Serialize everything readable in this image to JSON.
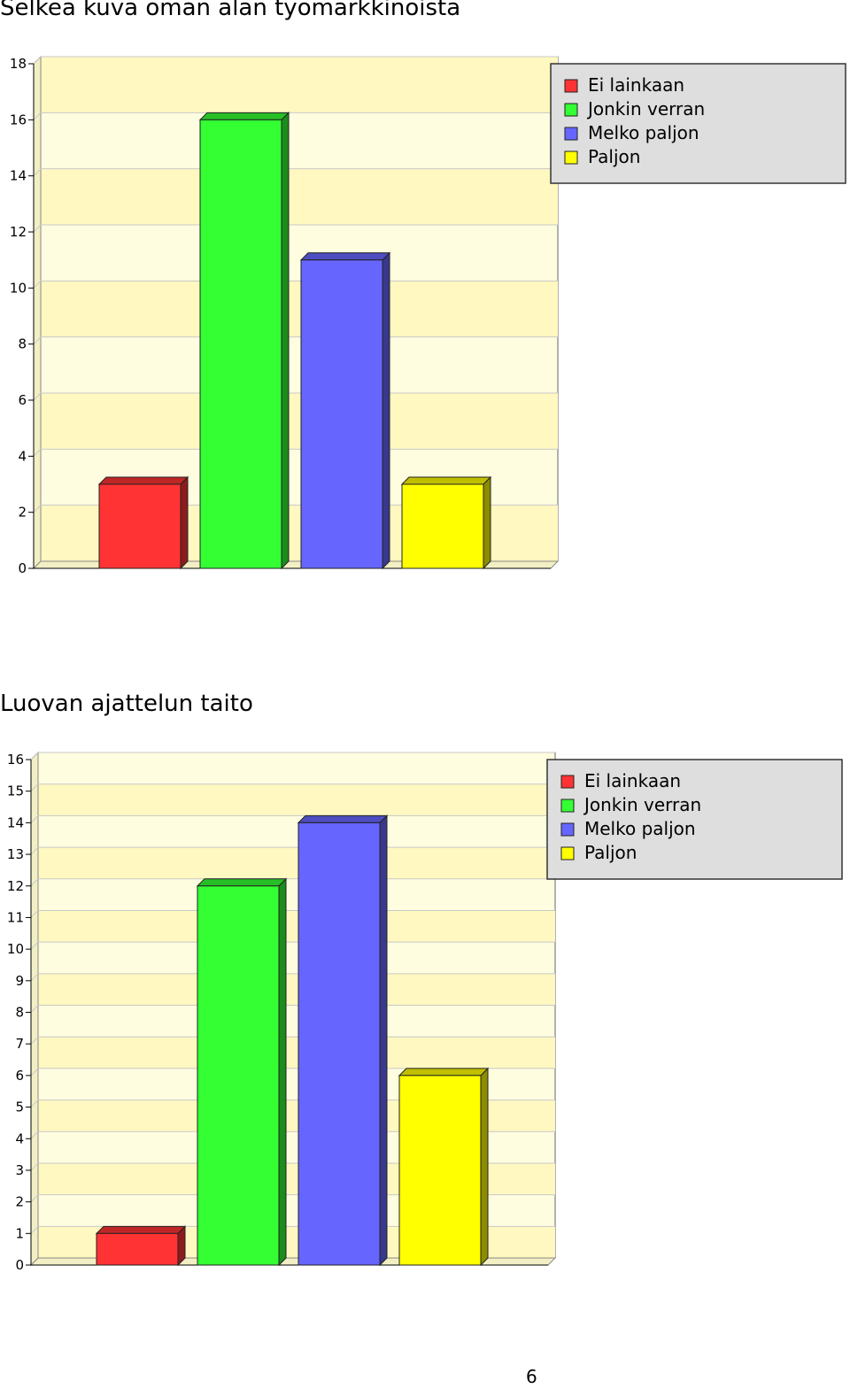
{
  "page_number": "6",
  "chart_data": [
    {
      "type": "bar",
      "title": "Selkeä kuva oman alan työmarkkinoista",
      "categories": [
        "Ei lainkaan",
        "Jonkin verran",
        "Melko paljon",
        "Paljon"
      ],
      "values": [
        3,
        16,
        11,
        3
      ],
      "colors": [
        "#ff3333",
        "#33ff33",
        "#6666ff",
        "#ffff00"
      ],
      "ylim": [
        0,
        18
      ],
      "yticks": [
        0,
        2,
        4,
        6,
        8,
        10,
        12,
        14,
        16,
        18
      ],
      "legend": {
        "position": "top-right",
        "entries": [
          "Ei lainkaan",
          "Jonkin verran",
          "Melko paljon",
          "Paljon"
        ]
      },
      "grid": true,
      "xlabel": "",
      "ylabel": ""
    },
    {
      "type": "bar",
      "title": "Luovan ajattelun taito",
      "categories": [
        "Ei lainkaan",
        "Jonkin verran",
        "Melko paljon",
        "Paljon"
      ],
      "values": [
        1,
        12,
        14,
        6
      ],
      "colors": [
        "#ff3333",
        "#33ff33",
        "#6666ff",
        "#ffff00"
      ],
      "ylim": [
        0,
        16
      ],
      "yticks": [
        0,
        1,
        2,
        3,
        4,
        5,
        6,
        7,
        8,
        9,
        10,
        11,
        12,
        13,
        14,
        15,
        16
      ],
      "legend": {
        "position": "top-right",
        "entries": [
          "Ei lainkaan",
          "Jonkin verran",
          "Melko paljon",
          "Paljon"
        ]
      },
      "grid": true,
      "xlabel": "",
      "ylabel": ""
    }
  ]
}
